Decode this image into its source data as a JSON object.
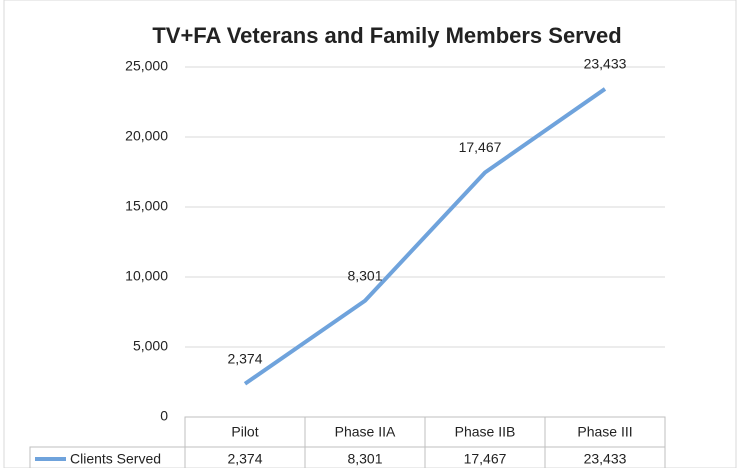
{
  "chart_data": {
    "type": "line",
    "title": "TV+FA Veterans and Family Members Served",
    "categories": [
      "Pilot",
      "Phase IIA",
      "Phase IIB",
      "Phase III"
    ],
    "series": [
      {
        "name": "Clients Served",
        "color": "#6fa3dc",
        "values": [
          2374,
          8301,
          17467,
          23433
        ],
        "value_labels": [
          "2,374",
          "8,301",
          "17,467",
          "23,433"
        ]
      }
    ],
    "ylim": [
      0,
      25000
    ],
    "yticks": [
      0,
      {
        "value": 5000,
        "label": "5,000"
      },
      {
        "value": 10000,
        "label": "10,000"
      },
      {
        "value": 15000,
        "label": "15,000"
      },
      {
        "value": 20000,
        "label": "20,000"
      },
      {
        "value": 25000,
        "label": "25,000"
      }
    ],
    "grid": true,
    "data_table": true
  }
}
